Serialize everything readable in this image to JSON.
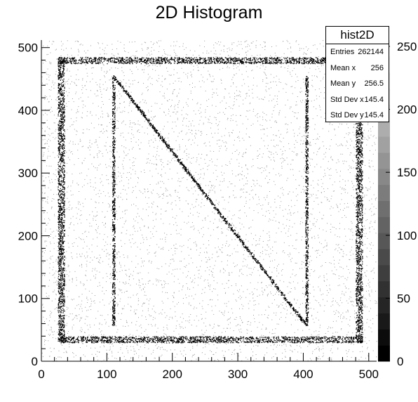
{
  "chart_data": {
    "type": "heatmap",
    "title": "2D Histogram",
    "xlabel": "",
    "ylabel": "",
    "xlim": [
      0,
      512
    ],
    "ylim": [
      0,
      512
    ],
    "x_ticks": [
      0,
      100,
      200,
      300,
      400,
      500
    ],
    "y_ticks": [
      0,
      100,
      200,
      300,
      400,
      500
    ],
    "colorbar": {
      "range": [
        0,
        255
      ],
      "ticks": [
        0,
        50,
        100,
        150,
        200,
        250
      ],
      "tick_labels": [
        "0",
        "50",
        "100",
        "150",
        "200",
        "250"
      ],
      "palette": "grayscale, black at 0 to white at max"
    },
    "image_content": {
      "background": "uniform sparse noise across the full 512 x 512 range",
      "frame": {
        "x_min": 25,
        "x_max": 490,
        "y_min": 30,
        "y_max": 485,
        "thickness": 10
      },
      "letter_N": {
        "left_stroke": {
          "x": 110,
          "y_min": 57,
          "y_max": 455
        },
        "diagonal": {
          "from": [
            110,
            455
          ],
          "to": [
            405,
            57
          ]
        },
        "right_stroke": {
          "x": 405,
          "y_min": 57,
          "y_max": 455
        }
      }
    },
    "stats_box": {
      "name": "hist2D",
      "rows": [
        {
          "label": "Entries",
          "value": "262144"
        },
        {
          "label": "Mean x",
          "value": "256"
        },
        {
          "label": "Mean y",
          "value": "256.5"
        },
        {
          "label": "Std Dev x",
          "value": "145.4"
        },
        {
          "label": "Std Dev y",
          "value": "145.4"
        }
      ]
    }
  },
  "colors": {
    "ink": "#000000",
    "background": "#ffffff",
    "speckle": "#9a9a9a"
  }
}
